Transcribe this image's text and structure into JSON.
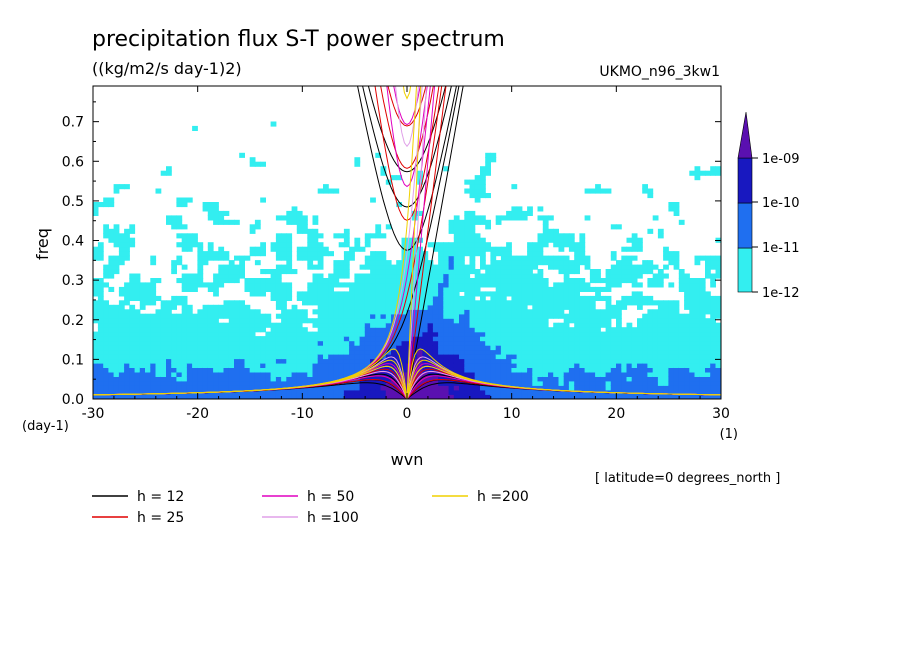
{
  "chart_data": {
    "type": "heatmap",
    "title": "precipitation flux S-T power spectrum",
    "subtitle": "((kg/m2/s day-1)2)",
    "model": "UKMO_n96_3kw1",
    "xlabel": "wvn",
    "xunit": "(1)",
    "ylabel": "freq",
    "yunit": "(day-1)",
    "xlim": [
      -30,
      30
    ],
    "ylim": [
      0,
      0.79
    ],
    "xticks": [
      -30,
      -20,
      -10,
      0,
      10,
      20,
      30
    ],
    "yticks": [
      0.0,
      0.1,
      0.2,
      0.3,
      0.4,
      0.5,
      0.6,
      0.7
    ],
    "ytick_labels": [
      "0.0",
      "0.1",
      "0.2",
      "0.3",
      "0.4",
      "0.5",
      "0.6",
      "0.7"
    ],
    "latitude_note": "[ latitude=0 degrees_north ]",
    "colorbar": {
      "labels": [
        "1e-12",
        "1e-11",
        "1e-10",
        "1e-09"
      ],
      "levels": [
        {
          "from": "1e-12",
          "to": "1e-11",
          "color": "#33eef0"
        },
        {
          "from": "1e-11",
          "to": "1e-10",
          "color": "#1f6ff0"
        },
        {
          "from": "1e-10",
          "to": "1e-09",
          "color": "#1818c0"
        },
        {
          "from": "1e-09",
          "to": "max",
          "color": "#5a10b0"
        }
      ]
    },
    "dispersion_curves": [
      {
        "label": "h = 12",
        "h": 12,
        "color": "#000000"
      },
      {
        "label": "h = 25",
        "h": 25,
        "color": "#e00000"
      },
      {
        "label": "h = 50",
        "h": 50,
        "color": "#e000c0"
      },
      {
        "label": "h =100",
        "h": 100,
        "color": "#e0a0e8"
      },
      {
        "label": "h =200",
        "h": 200,
        "color": "#f0d000"
      }
    ]
  }
}
